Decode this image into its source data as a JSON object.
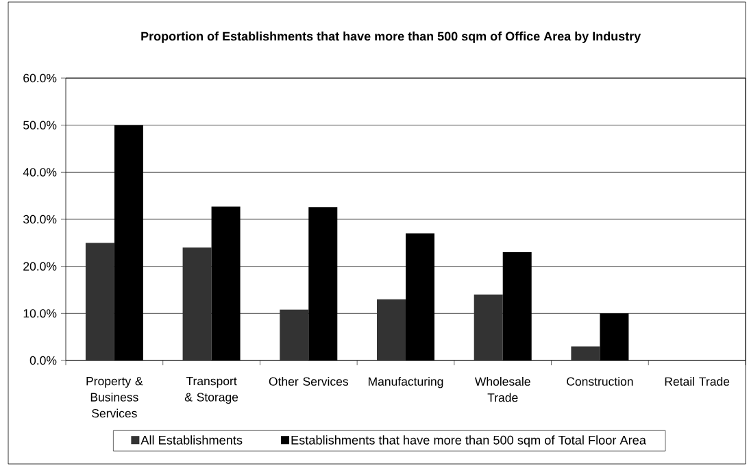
{
  "chart_data": {
    "type": "bar",
    "title": "Proportion of Establishments that have more than 500 sqm of Office Area by Industry",
    "categories": [
      "Property & Business Services",
      "Transport & Storage",
      "Other Services",
      "Manufacturing",
      "Wholesale Trade",
      "Construction",
      "Retail Trade"
    ],
    "series": [
      {
        "name": "All Establishments",
        "color": "#333333",
        "values": [
          25,
          24,
          10.8,
          13,
          14,
          3,
          null
        ]
      },
      {
        "name": "Establishments that have more than 500 sqm of Total Floor Area",
        "color": "#000000",
        "values": [
          50,
          32.7,
          32.6,
          27,
          23,
          10,
          null
        ]
      }
    ],
    "ylim": [
      0,
      60
    ],
    "yticks": [
      {
        "value": 0,
        "label": "0.0%"
      },
      {
        "value": 10,
        "label": "10.0%"
      },
      {
        "value": 20,
        "label": "20.0%"
      },
      {
        "value": 30,
        "label": "30.0%"
      },
      {
        "value": 40,
        "label": "40.0%"
      },
      {
        "value": 50,
        "label": "50.0%"
      },
      {
        "value": 60,
        "label": "60.0%"
      }
    ],
    "grid": "y",
    "legend": "bottom"
  }
}
